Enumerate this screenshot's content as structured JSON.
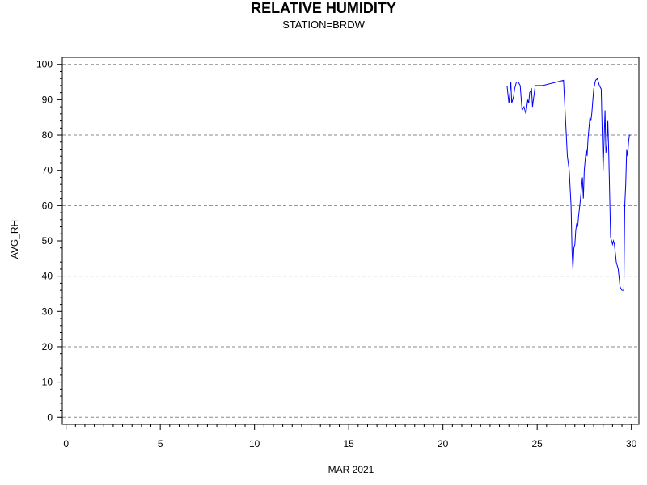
{
  "chart_data": {
    "type": "line",
    "title": "RELATIVE HUMIDITY",
    "subtitle": "STATION=BRDW",
    "xlabel": "MAR 2021",
    "ylabel": "AVG_RH",
    "xlim": [
      -0.2,
      30.4
    ],
    "ylim": [
      -2,
      102
    ],
    "xticks": [
      0,
      5,
      10,
      15,
      20,
      25,
      30
    ],
    "yticks": [
      0,
      10,
      20,
      30,
      40,
      50,
      60,
      70,
      80,
      90,
      100
    ],
    "grid": "horizontal dashed at 0, 20, 40, 60, 80, 100",
    "line_color": "#0000ff",
    "series": [
      {
        "x": [
          23.4,
          23.5,
          23.6,
          23.65,
          23.75,
          23.8,
          23.9,
          24.0,
          24.1,
          24.2,
          24.3,
          24.4,
          24.5,
          24.55,
          24.6,
          24.7,
          24.75,
          24.8,
          24.9,
          25.0,
          25.05,
          25.1,
          25.2,
          25.3,
          26.4,
          26.5,
          26.6,
          26.7,
          26.8,
          26.85,
          26.9,
          26.95,
          27.0,
          27.05,
          27.1,
          27.15,
          27.2,
          27.3,
          27.4,
          27.45,
          27.5,
          27.6,
          27.65,
          27.7,
          27.8,
          27.85,
          27.9,
          28.0,
          28.1,
          28.2,
          28.3,
          28.4,
          28.5,
          28.6,
          28.65,
          28.7,
          28.75,
          28.8,
          28.9,
          29.0,
          29.05,
          29.1,
          29.2,
          29.3,
          29.4,
          29.5,
          29.6,
          29.65,
          29.7,
          29.75,
          29.8,
          29.85,
          29.9,
          29.95
        ],
        "y": [
          94,
          89,
          95,
          89,
          91,
          93,
          95,
          95,
          94,
          87,
          88,
          86,
          90,
          89,
          92,
          93,
          88,
          90,
          94,
          94,
          94,
          94,
          94,
          94,
          95.5,
          85,
          74,
          70,
          60,
          47,
          42,
          48,
          49,
          53,
          55,
          54,
          57,
          62,
          68,
          62,
          70,
          76,
          74,
          79,
          85,
          84,
          86,
          93,
          95.5,
          96,
          94,
          93,
          70,
          87,
          75,
          77,
          84,
          75,
          51,
          49,
          50,
          49,
          44,
          42,
          37,
          36,
          36,
          60,
          66,
          76,
          74,
          78,
          80,
          80
        ]
      }
    ]
  }
}
